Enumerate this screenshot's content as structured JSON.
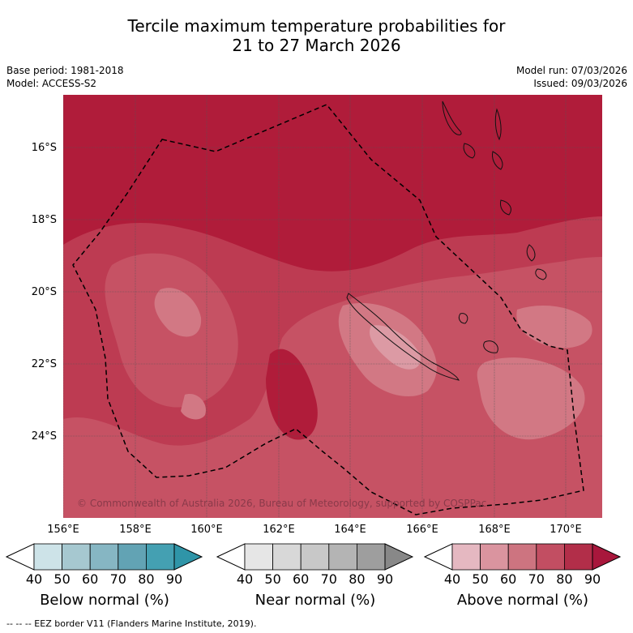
{
  "title_line1": "Tercile maximum temperature probabilities for",
  "title_line2": "21 to 27 March 2026",
  "base_period": "Base period: 1981-2018",
  "model": "Model: ACCESS-S2",
  "model_run": "Model run: 07/03/2026",
  "issued": "Issued: 09/03/2026",
  "lat_labels": [
    "16°S",
    "18°S",
    "20°S",
    "22°S",
    "24°S"
  ],
  "lon_labels": [
    "156°E",
    "158°E",
    "160°E",
    "162°E",
    "164°E",
    "166°E",
    "168°E",
    "170°E"
  ],
  "copyright": "© Commonwealth of Australia 2026, Bureau of Meteorology, supported by COSPPac",
  "colorbars": [
    {
      "title": "Below normal (%)",
      "ticks": [
        "40",
        "50",
        "60",
        "70",
        "80",
        "90"
      ],
      "colors": [
        "#ffffff",
        "#cde3e8",
        "#a6c8d0",
        "#86b6c3",
        "#62a3b4",
        "#44a0b2",
        "#2f95a8"
      ]
    },
    {
      "title": "Near normal (%)",
      "ticks": [
        "40",
        "50",
        "60",
        "70",
        "80",
        "90"
      ],
      "colors": [
        "#ffffff",
        "#e6e6e6",
        "#d8d8d8",
        "#c8c8c8",
        "#b4b4b4",
        "#9e9e9e",
        "#888888"
      ]
    },
    {
      "title": "Above normal (%)",
      "ticks": [
        "40",
        "50",
        "60",
        "70",
        "80",
        "90"
      ],
      "colors": [
        "#ffffff",
        "#e5b8c1",
        "#da949f",
        "#cd7480",
        "#c24e62",
        "#b22e49",
        "#a8173c"
      ]
    }
  ],
  "footer": "-- -- -- EEZ border V11 (Flanders Marine Institute, 2019).",
  "colors": {
    "above_90": "#b01c3a",
    "above_80": "#bd3b52",
    "above_70": "#c65264",
    "above_60": "#d27884",
    "above_50": "#dc9aa4"
  }
}
